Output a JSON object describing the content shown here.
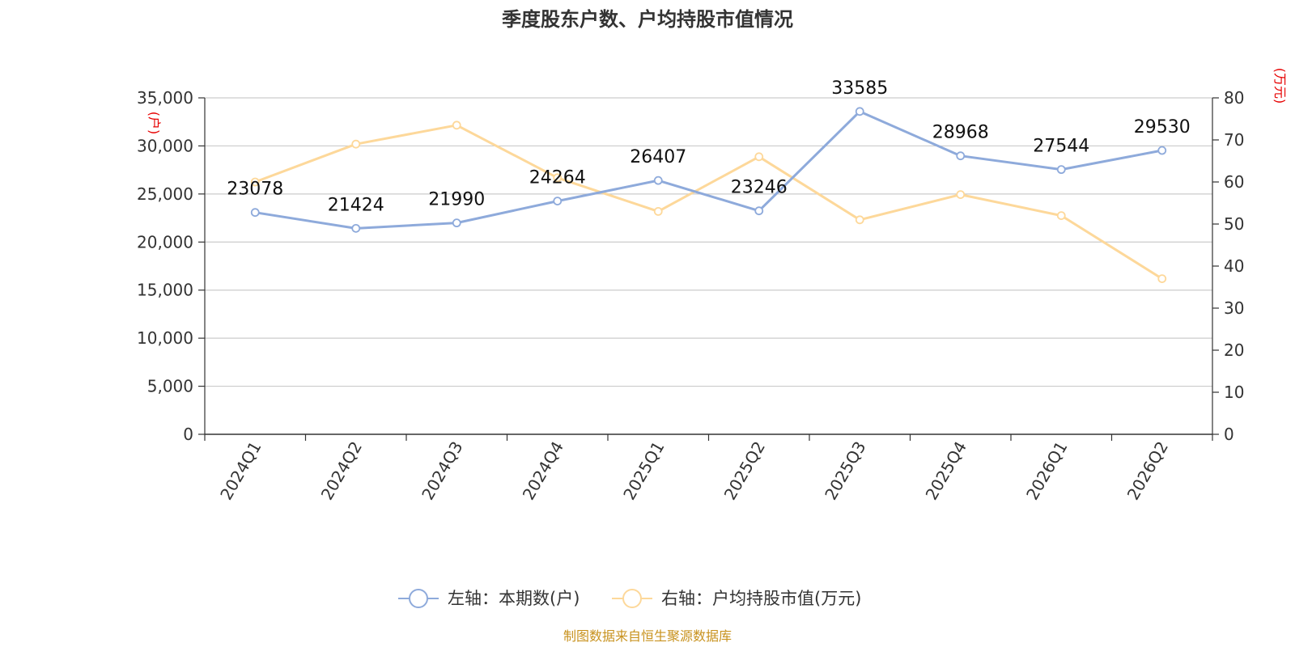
{
  "chart_data": {
    "type": "line",
    "title": "季度股东户数、户均持股市值情况",
    "categories": [
      "2024Q1",
      "2024Q2",
      "2024Q3",
      "2024Q4",
      "2025Q1",
      "2025Q2",
      "2025Q3",
      "2025Q4",
      "2026Q1",
      "2026Q2"
    ],
    "series": [
      {
        "name": "左轴：本期数(户)",
        "axis": "left",
        "color": "#8eaadb",
        "values": [
          23078,
          21424,
          21990,
          24264,
          26407,
          23246,
          33585,
          28968,
          27544,
          29530
        ],
        "labels": [
          "23078",
          "21424",
          "21990",
          "24264",
          "26407",
          "23246",
          "33585",
          "28968",
          "27544",
          "29530"
        ]
      },
      {
        "name": "右轴：户均持股市值(万元)",
        "axis": "right",
        "color": "#fdd89a",
        "values": [
          60,
          69,
          73.5,
          61,
          53,
          66,
          51,
          57,
          52,
          37
        ]
      }
    ],
    "left_axis": {
      "unit": "(户)",
      "min": 0,
      "max": 35000,
      "ticks": [
        0,
        5000,
        10000,
        15000,
        20000,
        25000,
        30000,
        35000
      ],
      "tick_labels": [
        "0",
        "5,000",
        "10,000",
        "15,000",
        "20,000",
        "25,000",
        "30,000",
        "35,000"
      ]
    },
    "right_axis": {
      "unit": "(万元)",
      "min": 0,
      "max": 80,
      "ticks": [
        0,
        10,
        20,
        30,
        40,
        50,
        60,
        70,
        80
      ],
      "tick_labels": [
        "0",
        "10",
        "20",
        "30",
        "40",
        "50",
        "60",
        "70",
        "80"
      ]
    },
    "grid": true,
    "legend_position": "bottom-center",
    "source": "制图数据来自恒生聚源数据库"
  }
}
